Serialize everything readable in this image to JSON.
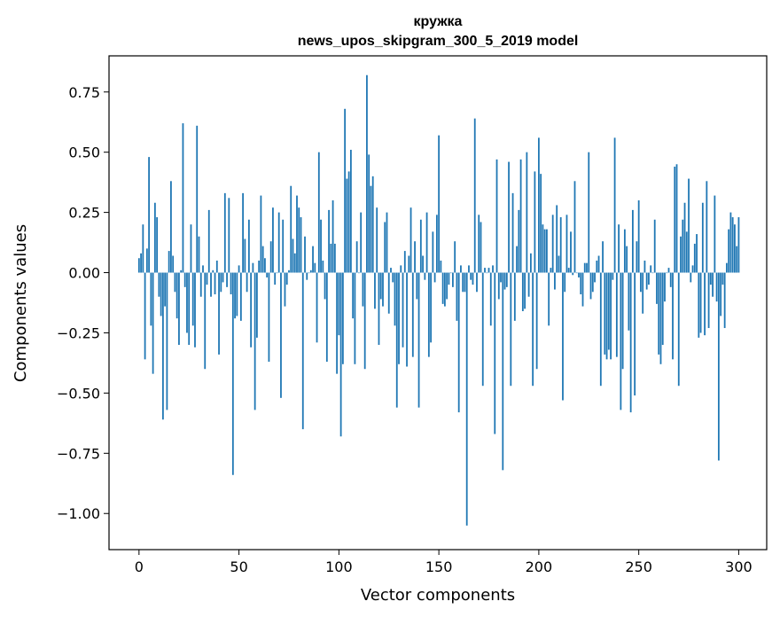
{
  "chart_data": {
    "type": "bar",
    "title": "кружка",
    "subtitle": "news_upos_skipgram_300_5_2019 model",
    "xlabel": "Vector components",
    "ylabel": "Components values",
    "xlim": [
      -15,
      314
    ],
    "ylim": [
      -1.15,
      0.9
    ],
    "xticks": [
      0,
      50,
      100,
      150,
      200,
      250,
      300
    ],
    "xtick_labels": [
      "0",
      "50",
      "100",
      "150",
      "200",
      "250",
      "300"
    ],
    "yticks": [
      0.75,
      0.5,
      0.25,
      0.0,
      -0.25,
      -0.5,
      -0.75,
      -1.0
    ],
    "ytick_labels": [
      "0.75",
      "0.50",
      "0.25",
      "0.00",
      "−0.25",
      "−0.50",
      "−0.75",
      "−1.00"
    ],
    "grid": false,
    "bar_color": "#1f77b4",
    "values": [
      0.06,
      0.08,
      0.2,
      -0.36,
      0.1,
      0.48,
      -0.22,
      -0.42,
      0.29,
      0.23,
      -0.1,
      -0.18,
      -0.61,
      -0.14,
      -0.57,
      0.09,
      0.38,
      0.07,
      -0.08,
      -0.19,
      -0.3,
      0.01,
      0.62,
      -0.06,
      -0.25,
      -0.3,
      0.2,
      -0.22,
      -0.31,
      0.61,
      0.15,
      -0.1,
      0.03,
      -0.4,
      -0.05,
      0.26,
      -0.1,
      0.01,
      -0.09,
      0.05,
      -0.34,
      -0.08,
      -0.04,
      0.33,
      -0.06,
      0.31,
      -0.09,
      -0.84,
      -0.19,
      -0.18,
      0.03,
      -0.2,
      0.33,
      0.14,
      -0.08,
      0.22,
      -0.31,
      0.04,
      -0.57,
      -0.27,
      0.05,
      0.32,
      0.11,
      0.06,
      -0.02,
      -0.37,
      0.13,
      0.27,
      -0.05,
      0.0,
      0.25,
      -0.52,
      0.22,
      -0.14,
      -0.05,
      0.01,
      0.36,
      0.14,
      0.08,
      0.32,
      0.27,
      0.23,
      -0.65,
      0.15,
      -0.03,
      0.0,
      0.01,
      0.11,
      0.04,
      -0.29,
      0.5,
      0.22,
      0.05,
      -0.11,
      -0.37,
      0.26,
      0.12,
      0.3,
      0.12,
      -0.42,
      -0.26,
      -0.68,
      -0.38,
      0.68,
      0.39,
      0.42,
      0.51,
      -0.19,
      -0.38,
      0.13,
      0.0,
      0.25,
      -0.14,
      -0.4,
      0.82,
      0.49,
      0.36,
      0.4,
      -0.15,
      0.27,
      -0.3,
      -0.11,
      -0.14,
      0.21,
      0.25,
      -0.17,
      0.02,
      -0.04,
      -0.22,
      -0.56,
      -0.38,
      0.03,
      -0.31,
      0.09,
      -0.39,
      0.07,
      0.27,
      -0.35,
      0.13,
      -0.11,
      -0.56,
      0.22,
      0.07,
      -0.03,
      0.25,
      -0.35,
      -0.29,
      0.17,
      -0.04,
      0.24,
      0.57,
      0.05,
      -0.13,
      -0.14,
      -0.11,
      -0.05,
      0.0,
      -0.06,
      0.13,
      -0.2,
      -0.58,
      0.03,
      -0.08,
      -0.08,
      -1.05,
      0.03,
      -0.03,
      -0.05,
      0.64,
      -0.08,
      0.24,
      0.21,
      -0.47,
      0.02,
      0.0,
      0.02,
      -0.22,
      0.03,
      -0.67,
      0.47,
      -0.11,
      -0.04,
      -0.82,
      -0.07,
      -0.06,
      0.46,
      -0.47,
      0.33,
      -0.2,
      0.11,
      0.26,
      0.47,
      -0.16,
      -0.15,
      0.5,
      -0.1,
      0.08,
      -0.47,
      0.42,
      -0.4,
      0.56,
      0.41,
      0.2,
      0.18,
      0.18,
      -0.22,
      0.02,
      0.24,
      -0.07,
      0.28,
      0.07,
      0.23,
      -0.53,
      -0.08,
      0.24,
      0.02,
      0.17,
      -0.01,
      0.38,
      0.0,
      -0.02,
      -0.09,
      -0.14,
      0.04,
      0.04,
      0.5,
      -0.11,
      -0.08,
      -0.04,
      0.05,
      0.07,
      -0.47,
      0.13,
      -0.34,
      -0.36,
      -0.32,
      -0.36,
      -0.03,
      0.56,
      -0.35,
      0.2,
      -0.57,
      -0.4,
      0.18,
      0.11,
      -0.24,
      -0.58,
      0.26,
      -0.51,
      0.13,
      0.3,
      -0.08,
      -0.17,
      0.05,
      -0.07,
      -0.05,
      0.03,
      0.0,
      0.22,
      -0.13,
      -0.34,
      -0.38,
      -0.3,
      -0.12,
      0.0,
      0.02,
      -0.06,
      -0.36,
      0.44,
      0.45,
      -0.47,
      0.15,
      0.22,
      0.29,
      0.17,
      0.39,
      -0.04,
      0.03,
      0.12,
      0.16,
      -0.27,
      -0.25,
      0.29,
      -0.26,
      0.38,
      -0.23,
      -0.05,
      -0.1,
      0.32,
      -0.12,
      -0.78,
      -0.18,
      -0.05,
      -0.23,
      0.04,
      0.18,
      0.25,
      0.23,
      0.2,
      0.11,
      0.23
    ]
  }
}
